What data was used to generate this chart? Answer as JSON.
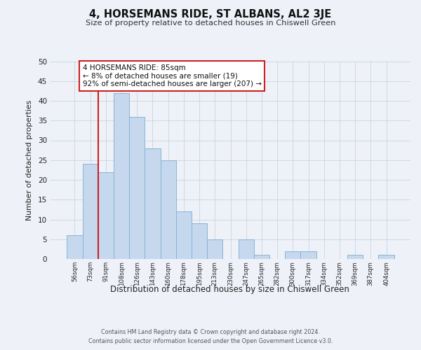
{
  "title": "4, HORSEMANS RIDE, ST ALBANS, AL2 3JE",
  "subtitle": "Size of property relative to detached houses in Chiswell Green",
  "xlabel": "Distribution of detached houses by size in Chiswell Green",
  "ylabel": "Number of detached properties",
  "bar_labels": [
    "56sqm",
    "73sqm",
    "91sqm",
    "108sqm",
    "126sqm",
    "143sqm",
    "160sqm",
    "178sqm",
    "195sqm",
    "213sqm",
    "230sqm",
    "247sqm",
    "265sqm",
    "282sqm",
    "300sqm",
    "317sqm",
    "334sqm",
    "352sqm",
    "369sqm",
    "387sqm",
    "404sqm"
  ],
  "bar_values": [
    6,
    24,
    22,
    42,
    36,
    28,
    25,
    12,
    9,
    5,
    0,
    5,
    1,
    0,
    2,
    2,
    0,
    0,
    1,
    0,
    1
  ],
  "bar_color": "#c5d8ed",
  "bar_edge_color": "#8ab4d4",
  "ylim": [
    0,
    50
  ],
  "yticks": [
    0,
    5,
    10,
    15,
    20,
    25,
    30,
    35,
    40,
    45,
    50
  ],
  "grid_color": "#c8d4e0",
  "annotation_line1": "4 HORSEMANS RIDE: 85sqm",
  "annotation_line2": "← 8% of detached houses are smaller (19)",
  "annotation_line3": "92% of semi-detached houses are larger (207) →",
  "annotation_box_color": "#ffffff",
  "annotation_box_edge_color": "#cc2222",
  "property_line_color": "#cc2222",
  "property_line_x": 1.5,
  "footer_line1": "Contains HM Land Registry data © Crown copyright and database right 2024.",
  "footer_line2": "Contains public sector information licensed under the Open Government Licence v3.0.",
  "bg_color": "#eef2f8"
}
